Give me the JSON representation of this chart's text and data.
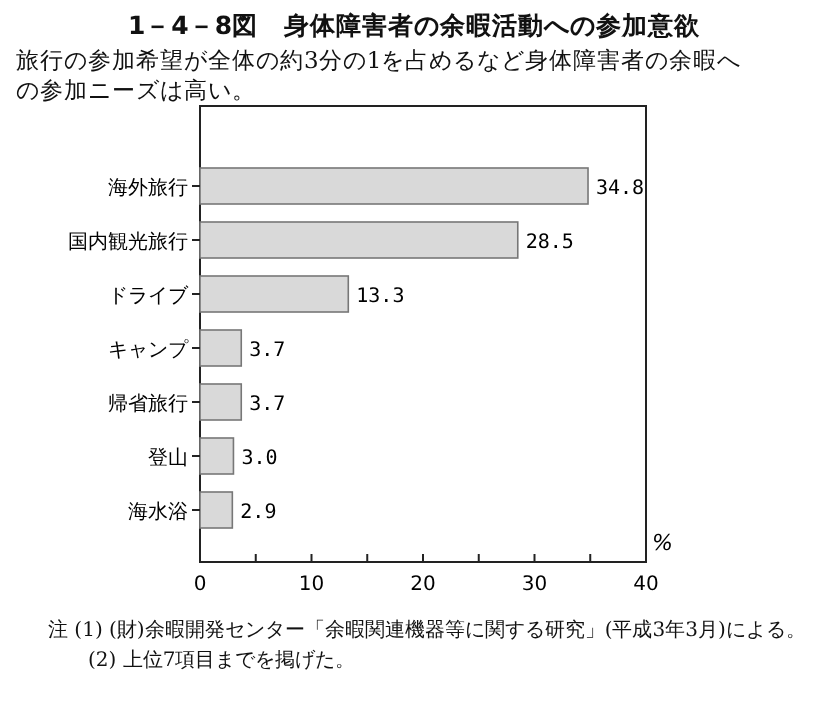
{
  "chart_data": {
    "type": "bar",
    "orientation": "horizontal",
    "title": "1－4－8図　身体障害者の余暇活動への参加意欲",
    "subtitle": "旅行の参加希望が全体の約3分の1を占めるなど身体障害者の余暇への参加ニーズは高い。",
    "categories": [
      "海外旅行",
      "国内観光旅行",
      "ドライブ",
      "キャンプ",
      "帰省旅行",
      "登山",
      "海水浴"
    ],
    "values": [
      34.8,
      28.5,
      13.3,
      3.7,
      3.7,
      3.0,
      2.9
    ],
    "color": "#d9d9d9",
    "data_labels": true,
    "value_labels": [
      "34.8",
      "28.5",
      "13.3",
      "3.7",
      "3.7",
      "3.0",
      "2.9"
    ],
    "xlim": [
      0,
      40
    ],
    "xticks": [
      0,
      {
        "value": 5,
        "label": null
      },
      10,
      {
        "value": 15,
        "label": null
      },
      20,
      {
        "value": 25,
        "label": null
      },
      30,
      {
        "value": 35,
        "label": null
      },
      40
    ],
    "xlabel": "%",
    "grid": false,
    "annotations": [
      "注 (1) (財)余暇開発センター「余暇関連機器等に関する研究」(平成3年3月)による。",
      "(2) 上位7項目までを掲げた。"
    ]
  }
}
